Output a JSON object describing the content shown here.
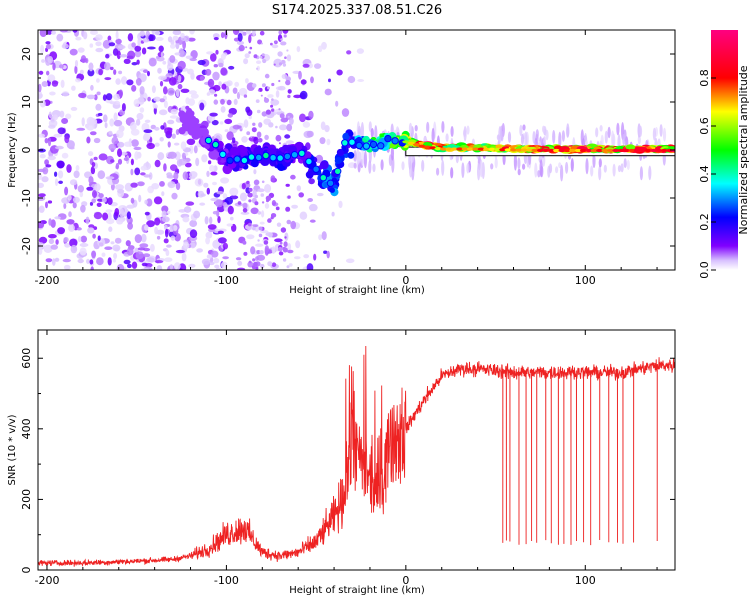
{
  "title": "S174.2025.337.08.51.C26",
  "chart_data": [
    {
      "type": "heatmap",
      "name": "spectrogram",
      "xlabel": "Height of straight line (km)",
      "ylabel": "Frequency (Hz)",
      "xlim": [
        -205,
        150
      ],
      "ylim": [
        -25,
        25
      ],
      "xticks": [
        -200,
        -100,
        0,
        100
      ],
      "yticks": [
        -20,
        -10,
        0,
        10,
        20
      ],
      "xtick_labels": [
        "-200",
        "-100",
        "0",
        "100"
      ],
      "ytick_labels": [
        "-20",
        "-10",
        "0",
        "10",
        "20"
      ],
      "colorbar": {
        "label": "Normalized spectral amplitude",
        "range": [
          0.0,
          1.0
        ],
        "ticks": [
          0.0,
          0.2,
          0.4,
          0.6,
          0.8
        ],
        "tick_labels": [
          "0.0",
          "0.2",
          "0.4",
          "0.6",
          "0.8"
        ],
        "colormap": [
          "#ffffff",
          "#8000ff",
          "#0000ff",
          "#00ffff",
          "#00ff00",
          "#ffff00",
          "#ff0000",
          "#ff0080"
        ]
      },
      "ridge": {
        "x": [
          -120,
          -110,
          -100,
          -90,
          -80,
          -70,
          -60,
          -50,
          -40,
          -35,
          -30,
          -20,
          -10,
          0,
          10,
          20,
          40,
          60,
          80,
          100,
          120,
          150
        ],
        "freq_hz": [
          6,
          2,
          -2,
          -2,
          -1,
          -2,
          0,
          -4,
          -7,
          1,
          2,
          1,
          2,
          2,
          1,
          0.5,
          0.5,
          0.3,
          0.2,
          0.2,
          0.2,
          0.2
        ],
        "amplitude": [
          0.05,
          0.1,
          0.15,
          0.2,
          0.2,
          0.2,
          0.15,
          0.25,
          0.3,
          0.2,
          0.3,
          0.45,
          0.55,
          0.7,
          0.85,
          0.75,
          0.75,
          0.8,
          0.8,
          0.85,
          0.85,
          0.9
        ]
      }
    },
    {
      "type": "line",
      "name": "snr",
      "xlabel": "Height of straight line (km)",
      "ylabel": "SNR (10 * v/v)",
      "xlim": [
        -205,
        150
      ],
      "ylim": [
        0,
        680
      ],
      "xticks": [
        -200,
        -100,
        0,
        100
      ],
      "yticks": [
        0,
        200,
        400,
        600
      ],
      "xtick_labels": [
        "-200",
        "-100",
        "0",
        "100"
      ],
      "ytick_labels": [
        "0",
        "200",
        "400",
        "600"
      ],
      "color": "#ee2222",
      "series": [
        {
          "name": "SNR",
          "x": [
            -205,
            -180,
            -150,
            -130,
            -120,
            -110,
            -100,
            -90,
            -80,
            -70,
            -60,
            -50,
            -40,
            -35,
            -30,
            -25,
            -20,
            -15,
            -10,
            -5,
            0,
            10,
            20,
            30,
            40,
            60,
            80,
            100,
            120,
            140,
            150
          ],
          "values": [
            20,
            20,
            25,
            30,
            40,
            60,
            100,
            120,
            50,
            40,
            50,
            80,
            150,
            200,
            350,
            300,
            250,
            200,
            350,
            380,
            400,
            480,
            550,
            570,
            570,
            560,
            560,
            560,
            560,
            580,
            580
          ]
        }
      ],
      "dropouts_x": [
        54,
        56,
        58,
        63,
        67,
        70,
        73,
        78,
        81,
        85,
        88,
        92,
        95,
        99,
        103,
        108,
        113,
        118,
        121,
        127,
        140
      ]
    }
  ]
}
